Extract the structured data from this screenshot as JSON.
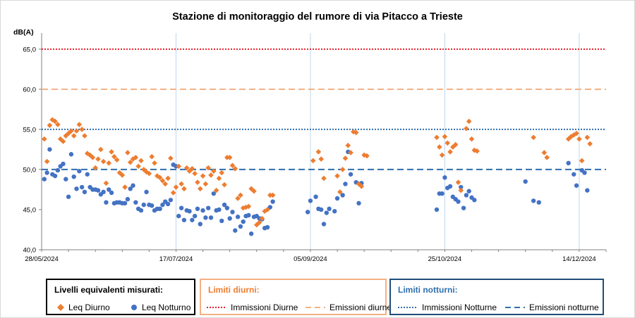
{
  "chart_data": {
    "type": "scatter",
    "title": "Stazione di monitoraggio del rumore di via Pitacco a Trieste",
    "ylabel": "dB(A)",
    "ylim": [
      40,
      67
    ],
    "y_ticks": [
      "40,0",
      "45,0",
      "50,0",
      "55,0",
      "60,0",
      "65,0"
    ],
    "y_tick_values": [
      40,
      45,
      50,
      55,
      60,
      65
    ],
    "x_range": [
      "2024-05-28",
      "2024-12-24"
    ],
    "x_ticks": [
      {
        "date": "2024-05-28",
        "label": "28/05/2024"
      },
      {
        "date": "2024-07-17",
        "label": "17/07/2024"
      },
      {
        "date": "2024-09-05",
        "label": "05/09/2024"
      },
      {
        "date": "2024-10-25",
        "label": "25/10/2024"
      },
      {
        "date": "2024-12-14",
        "label": "14/12/2024"
      }
    ],
    "grid": "vertical lines at x ticks",
    "series": [
      {
        "name": "Leq Diurno",
        "color": "#ed7d31",
        "marker": "diamond",
        "points": [
          [
            "2024-05-29",
            53.8
          ],
          [
            "2024-05-30",
            51.0
          ],
          [
            "2024-05-31",
            55.5
          ],
          [
            "2024-06-01",
            56.2
          ],
          [
            "2024-06-02",
            56.0
          ],
          [
            "2024-06-03",
            55.6
          ],
          [
            "2024-06-04",
            53.8
          ],
          [
            "2024-06-05",
            53.5
          ],
          [
            "2024-06-06",
            54.2
          ],
          [
            "2024-06-07",
            54.5
          ],
          [
            "2024-06-08",
            54.8
          ],
          [
            "2024-06-09",
            54.2
          ],
          [
            "2024-06-10",
            54.8
          ],
          [
            "2024-06-11",
            55.6
          ],
          [
            "2024-06-12",
            55.0
          ],
          [
            "2024-06-13",
            54.2
          ],
          [
            "2024-06-14",
            52.0
          ],
          [
            "2024-06-15",
            51.8
          ],
          [
            "2024-06-16",
            51.5
          ],
          [
            "2024-06-17",
            50.2
          ],
          [
            "2024-06-18",
            51.3
          ],
          [
            "2024-06-19",
            52.5
          ],
          [
            "2024-06-20",
            51.0
          ],
          [
            "2024-06-21",
            48.3
          ],
          [
            "2024-06-22",
            50.8
          ],
          [
            "2024-06-23",
            52.2
          ],
          [
            "2024-06-24",
            51.6
          ],
          [
            "2024-06-25",
            51.2
          ],
          [
            "2024-06-26",
            49.6
          ],
          [
            "2024-06-27",
            49.3
          ],
          [
            "2024-06-28",
            47.8
          ],
          [
            "2024-06-29",
            52.1
          ],
          [
            "2024-06-30",
            50.9
          ],
          [
            "2024-07-01",
            51.3
          ],
          [
            "2024-07-02",
            51.5
          ],
          [
            "2024-07-03",
            50.4
          ],
          [
            "2024-07-04",
            51.1
          ],
          [
            "2024-07-05",
            50.0
          ],
          [
            "2024-07-06",
            49.7
          ],
          [
            "2024-07-07",
            49.5
          ],
          [
            "2024-07-08",
            51.6
          ],
          [
            "2024-07-09",
            50.8
          ],
          [
            "2024-07-10",
            49.2
          ],
          [
            "2024-07-11",
            49.0
          ],
          [
            "2024-07-12",
            48.6
          ],
          [
            "2024-07-13",
            48.2
          ],
          [
            "2024-07-14",
            48.9
          ],
          [
            "2024-07-15",
            51.4
          ],
          [
            "2024-07-16",
            47.1
          ],
          [
            "2024-07-17",
            47.8
          ],
          [
            "2024-07-18",
            50.4
          ],
          [
            "2024-07-19",
            48.2
          ],
          [
            "2024-07-20",
            47.6
          ],
          [
            "2024-07-21",
            50.2
          ],
          [
            "2024-07-22",
            49.8
          ],
          [
            "2024-07-23",
            50.1
          ],
          [
            "2024-07-24",
            49.5
          ],
          [
            "2024-07-25",
            48.4
          ],
          [
            "2024-07-26",
            47.6
          ],
          [
            "2024-07-27",
            49.2
          ],
          [
            "2024-07-28",
            48.2
          ],
          [
            "2024-07-29",
            50.2
          ],
          [
            "2024-07-30",
            49.3
          ],
          [
            "2024-07-31",
            49.8
          ],
          [
            "2024-08-01",
            47.4
          ],
          [
            "2024-08-02",
            48.9
          ],
          [
            "2024-08-03",
            49.6
          ],
          [
            "2024-08-04",
            48.1
          ],
          [
            "2024-08-05",
            51.5
          ],
          [
            "2024-08-06",
            51.5
          ],
          [
            "2024-08-07",
            50.5
          ],
          [
            "2024-08-08",
            50.1
          ],
          [
            "2024-08-09",
            46.4
          ],
          [
            "2024-08-10",
            46.8
          ],
          [
            "2024-08-11",
            45.2
          ],
          [
            "2024-08-12",
            45.3
          ],
          [
            "2024-08-13",
            45.4
          ],
          [
            "2024-08-14",
            47.6
          ],
          [
            "2024-08-15",
            47.3
          ],
          [
            "2024-08-16",
            43.1
          ],
          [
            "2024-08-17",
            43.4
          ],
          [
            "2024-08-18",
            43.9
          ],
          [
            "2024-08-19",
            44.8
          ],
          [
            "2024-08-20",
            45.0
          ],
          [
            "2024-08-21",
            46.8
          ],
          [
            "2024-08-22",
            46.8
          ],
          [
            "2024-09-06",
            51.1
          ],
          [
            "2024-09-08",
            52.2
          ],
          [
            "2024-09-09",
            51.3
          ],
          [
            "2024-09-10",
            48.9
          ],
          [
            "2024-09-15",
            49.2
          ],
          [
            "2024-09-16",
            47.2
          ],
          [
            "2024-09-17",
            50.0
          ],
          [
            "2024-09-18",
            51.4
          ],
          [
            "2024-09-19",
            53.0
          ],
          [
            "2024-09-20",
            52.1
          ],
          [
            "2024-09-21",
            54.7
          ],
          [
            "2024-09-22",
            54.6
          ],
          [
            "2024-09-23",
            48.2
          ],
          [
            "2024-09-24",
            47.9
          ],
          [
            "2024-09-25",
            51.8
          ],
          [
            "2024-09-26",
            51.7
          ],
          [
            "2024-10-22",
            54.0
          ],
          [
            "2024-10-23",
            52.8
          ],
          [
            "2024-10-24",
            51.8
          ],
          [
            "2024-10-25",
            54.1
          ],
          [
            "2024-10-26",
            53.3
          ],
          [
            "2024-10-27",
            52.2
          ],
          [
            "2024-10-28",
            52.8
          ],
          [
            "2024-10-29",
            53.1
          ],
          [
            "2024-10-30",
            48.4
          ],
          [
            "2024-10-31",
            47.4
          ],
          [
            "2024-11-02",
            55.1
          ],
          [
            "2024-11-03",
            56.0
          ],
          [
            "2024-11-04",
            53.8
          ],
          [
            "2024-11-05",
            52.4
          ],
          [
            "2024-11-06",
            52.3
          ],
          [
            "2024-11-27",
            54.0
          ],
          [
            "2024-12-01",
            52.1
          ],
          [
            "2024-12-02",
            51.5
          ],
          [
            "2024-12-10",
            53.8
          ],
          [
            "2024-12-11",
            54.1
          ],
          [
            "2024-12-12",
            54.3
          ],
          [
            "2024-12-13",
            54.5
          ],
          [
            "2024-12-14",
            53.8
          ],
          [
            "2024-12-15",
            51.1
          ],
          [
            "2024-12-17",
            54.0
          ],
          [
            "2024-12-18",
            53.2
          ]
        ]
      },
      {
        "name": "Leq Notturno",
        "color": "#4472c4",
        "marker": "circle",
        "points": [
          [
            "2024-05-29",
            48.8
          ],
          [
            "2024-05-30",
            49.6
          ],
          [
            "2024-05-31",
            52.5
          ],
          [
            "2024-06-01",
            49.4
          ],
          [
            "2024-06-02",
            49.2
          ],
          [
            "2024-06-03",
            49.9
          ],
          [
            "2024-06-04",
            50.4
          ],
          [
            "2024-06-05",
            50.7
          ],
          [
            "2024-06-06",
            48.8
          ],
          [
            "2024-06-07",
            46.6
          ],
          [
            "2024-06-08",
            51.9
          ],
          [
            "2024-06-09",
            49.1
          ],
          [
            "2024-06-10",
            47.6
          ],
          [
            "2024-06-11",
            49.8
          ],
          [
            "2024-06-12",
            47.8
          ],
          [
            "2024-06-13",
            47.2
          ],
          [
            "2024-06-14",
            49.4
          ],
          [
            "2024-06-15",
            47.8
          ],
          [
            "2024-06-16",
            47.5
          ],
          [
            "2024-06-17",
            47.5
          ],
          [
            "2024-06-18",
            47.4
          ],
          [
            "2024-06-19",
            46.9
          ],
          [
            "2024-06-20",
            47.2
          ],
          [
            "2024-06-21",
            45.9
          ],
          [
            "2024-06-22",
            47.5
          ],
          [
            "2024-06-23",
            47.1
          ],
          [
            "2024-06-24",
            45.8
          ],
          [
            "2024-06-25",
            45.9
          ],
          [
            "2024-06-26",
            45.9
          ],
          [
            "2024-06-27",
            45.8
          ],
          [
            "2024-06-28",
            45.8
          ],
          [
            "2024-06-29",
            46.3
          ],
          [
            "2024-06-30",
            47.6
          ],
          [
            "2024-07-01",
            48.0
          ],
          [
            "2024-07-02",
            45.9
          ],
          [
            "2024-07-03",
            45.1
          ],
          [
            "2024-07-04",
            44.9
          ],
          [
            "2024-07-05",
            45.6
          ],
          [
            "2024-07-06",
            47.2
          ],
          [
            "2024-07-07",
            45.6
          ],
          [
            "2024-07-08",
            45.5
          ],
          [
            "2024-07-09",
            44.9
          ],
          [
            "2024-07-10",
            45.1
          ],
          [
            "2024-07-11",
            45.1
          ],
          [
            "2024-07-12",
            45.6
          ],
          [
            "2024-07-13",
            46.0
          ],
          [
            "2024-07-14",
            45.7
          ],
          [
            "2024-07-15",
            46.2
          ],
          [
            "2024-07-16",
            50.6
          ],
          [
            "2024-07-17",
            50.4
          ],
          [
            "2024-07-18",
            44.2
          ],
          [
            "2024-07-19",
            45.2
          ],
          [
            "2024-07-20",
            43.7
          ],
          [
            "2024-07-21",
            44.9
          ],
          [
            "2024-07-22",
            44.8
          ],
          [
            "2024-07-23",
            43.7
          ],
          [
            "2024-07-24",
            44.2
          ],
          [
            "2024-07-25",
            45.1
          ],
          [
            "2024-07-26",
            43.2
          ],
          [
            "2024-07-27",
            44.9
          ],
          [
            "2024-07-28",
            44.0
          ],
          [
            "2024-07-29",
            45.2
          ],
          [
            "2024-07-30",
            44.0
          ],
          [
            "2024-07-31",
            47.0
          ],
          [
            "2024-08-01",
            44.9
          ],
          [
            "2024-08-02",
            45.0
          ],
          [
            "2024-08-03",
            43.6
          ],
          [
            "2024-08-04",
            45.6
          ],
          [
            "2024-08-05",
            45.2
          ],
          [
            "2024-08-06",
            43.9
          ],
          [
            "2024-08-07",
            44.7
          ],
          [
            "2024-08-08",
            42.4
          ],
          [
            "2024-08-09",
            44.1
          ],
          [
            "2024-08-10",
            42.9
          ],
          [
            "2024-08-11",
            43.5
          ],
          [
            "2024-08-12",
            44.2
          ],
          [
            "2024-08-13",
            44.3
          ],
          [
            "2024-08-14",
            42.0
          ],
          [
            "2024-08-15",
            44.1
          ],
          [
            "2024-08-16",
            44.2
          ],
          [
            "2024-08-17",
            43.9
          ],
          [
            "2024-08-18",
            43.8
          ],
          [
            "2024-08-19",
            42.7
          ],
          [
            "2024-08-20",
            42.8
          ],
          [
            "2024-08-21",
            45.3
          ],
          [
            "2024-08-22",
            46.0
          ],
          [
            "2024-09-04",
            44.7
          ],
          [
            "2024-09-05",
            46.1
          ],
          [
            "2024-09-07",
            46.6
          ],
          [
            "2024-09-08",
            45.1
          ],
          [
            "2024-09-09",
            45.0
          ],
          [
            "2024-09-10",
            43.2
          ],
          [
            "2024-09-11",
            44.6
          ],
          [
            "2024-09-12",
            45.1
          ],
          [
            "2024-09-14",
            44.8
          ],
          [
            "2024-09-15",
            46.4
          ],
          [
            "2024-09-17",
            46.8
          ],
          [
            "2024-09-18",
            48.2
          ],
          [
            "2024-09-19",
            52.2
          ],
          [
            "2024-09-20",
            49.4
          ],
          [
            "2024-09-22",
            48.4
          ],
          [
            "2024-09-23",
            45.8
          ],
          [
            "2024-09-24",
            48.3
          ],
          [
            "2024-10-22",
            45.0
          ],
          [
            "2024-10-23",
            47.0
          ],
          [
            "2024-10-24",
            47.0
          ],
          [
            "2024-10-25",
            49.0
          ],
          [
            "2024-10-26",
            47.7
          ],
          [
            "2024-10-27",
            47.9
          ],
          [
            "2024-10-28",
            46.6
          ],
          [
            "2024-10-29",
            46.3
          ],
          [
            "2024-10-30",
            46.0
          ],
          [
            "2024-10-31",
            47.8
          ],
          [
            "2024-11-01",
            45.2
          ],
          [
            "2024-11-02",
            46.8
          ],
          [
            "2024-11-03",
            47.3
          ],
          [
            "2024-11-04",
            46.5
          ],
          [
            "2024-11-05",
            46.2
          ],
          [
            "2024-11-24",
            48.5
          ],
          [
            "2024-11-27",
            46.1
          ],
          [
            "2024-11-29",
            45.9
          ],
          [
            "2024-12-10",
            50.8
          ],
          [
            "2024-12-12",
            49.4
          ],
          [
            "2024-12-13",
            48.0
          ],
          [
            "2024-12-15",
            49.9
          ],
          [
            "2024-12-16",
            49.6
          ],
          [
            "2024-12-17",
            47.4
          ]
        ]
      }
    ],
    "reference_lines": [
      {
        "name": "Immissioni Diurne",
        "value": 65,
        "color": "#e8212a",
        "style": "dotted"
      },
      {
        "name": "Emissioni diurne",
        "value": 60,
        "color": "#f4b183",
        "style": "dashed"
      },
      {
        "name": "Immissioni Notturne",
        "value": 55,
        "color": "#2e6fae",
        "style": "dotted"
      },
      {
        "name": "Emissioni notturne",
        "value": 50,
        "color": "#2e6fae",
        "style": "dashed"
      }
    ]
  },
  "legend": {
    "measured": {
      "title": "Livelli equivalenti misurati:",
      "items": [
        "Leq Diurno",
        "Leq Notturno"
      ],
      "border": "#000000"
    },
    "day_limits": {
      "title": "Limiti diurni:",
      "items": [
        "Immissioni Diurne",
        "Emissioni diurne"
      ],
      "title_color": "#ed7d31",
      "border": "#f4b183"
    },
    "night_limits": {
      "title": "Limiti notturni:",
      "items": [
        "Immissioni Notturne",
        "Emissioni notturne"
      ],
      "title_color": "#2e6fae",
      "border": "#1f4e79"
    }
  }
}
